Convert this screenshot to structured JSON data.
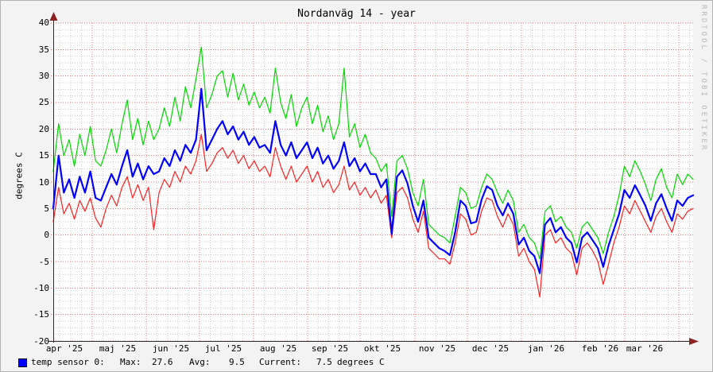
{
  "title": "Nordanväg 14 - year",
  "watermark": "RRDTOOL / TOBI OETIKER",
  "y_axis": {
    "label": "degrees C",
    "ticks": [
      "40",
      "35",
      "30",
      "25",
      "20",
      "15",
      "10",
      "5",
      "0",
      "-5",
      "-10",
      "-15",
      "-20"
    ]
  },
  "x_axis": {
    "labels": [
      "apr '25",
      "maj '25",
      "jun '25",
      "jul '25",
      "aug '25",
      "sep '25",
      "okt '25",
      "nov '25",
      "dec '25",
      "jan '26",
      "feb '26",
      "mar '26"
    ]
  },
  "legend": {
    "series_label": "temp sensor 0:",
    "max_label": "Max:",
    "max_value": "27.6",
    "avg_label": "Avg:",
    "avg_value": "9.5",
    "current_label": "Current:",
    "current_value": "7.5",
    "unit": "degrees C",
    "swatch_color": "#0000ff"
  },
  "colors": {
    "background": "#f3f3f3",
    "canvas": "#ffffff",
    "major_grid": "#ee5f5f",
    "minor_grid": "#cccccc",
    "axis": "#2d2d2d",
    "arrow": "#8b2323",
    "max_line": "#00d800",
    "avg_line": "#0000ff",
    "min_line": "#ff2020"
  },
  "chart_data": {
    "type": "line",
    "title": "Nordanväg 14 - year",
    "ylabel": "degrees C",
    "ylim": [
      -20,
      40
    ],
    "x_range": "apr 2025 - apr 2026 (one year, ~3-day sample spacing)",
    "x_tick_labels": [
      "apr '25",
      "maj '25",
      "jun '25",
      "jul '25",
      "aug '25",
      "sep '25",
      "okt '25",
      "nov '25",
      "dec '25",
      "jan '26",
      "feb '26",
      "mar '26"
    ],
    "grid": "major red dotted every 5 degC / month, minor gray dotted",
    "legend_position": "bottom-left",
    "stats": {
      "max": 27.6,
      "avg": 9.5,
      "current": 7.5,
      "unit": "degrees C"
    },
    "series": [
      {
        "name": "max",
        "color": "#00d800",
        "width": 1.2,
        "values": [
          12,
          21,
          15,
          18,
          13,
          19,
          15,
          20.5,
          14,
          13,
          16,
          20,
          15.5,
          21,
          25.5,
          18,
          22,
          17,
          21.5,
          18,
          20,
          24,
          20.5,
          26,
          21.5,
          28,
          24,
          29.5,
          35.5,
          24,
          26.5,
          30,
          31,
          26,
          30.5,
          25.5,
          28.5,
          24.5,
          27,
          24,
          26,
          23,
          31.5,
          25,
          22,
          26.5,
          20.5,
          24,
          26,
          21,
          24.5,
          19.5,
          22.5,
          18,
          21,
          31.5,
          18.5,
          21,
          16.5,
          19,
          15.5,
          14.5,
          12,
          13.5,
          3.5,
          14,
          15,
          12.5,
          8,
          5.5,
          10.5,
          2,
          1,
          0,
          -0.5,
          -1.5,
          3.5,
          9,
          8,
          5,
          5.5,
          9,
          11.5,
          10.5,
          8,
          6,
          8.5,
          6.5,
          0.5,
          2,
          -0.5,
          -1.5,
          -4.5,
          4.5,
          5.5,
          2.5,
          3.5,
          1.5,
          0.5,
          -2.5,
          1.5,
          2.5,
          1,
          -0.5,
          -3.5,
          0.5,
          3.5,
          7.5,
          13,
          11,
          14,
          12,
          9.5,
          6.5,
          10.5,
          12.5,
          9,
          7,
          11.5,
          9.5,
          11.5,
          10.5
        ]
      },
      {
        "name": "avg",
        "color": "#0000ff",
        "width": 2.2,
        "values": [
          5,
          15,
          8,
          10.5,
          7,
          11,
          8,
          12,
          7,
          6.5,
          9,
          11.5,
          9.5,
          13,
          16,
          11,
          13.5,
          10.5,
          13,
          11.5,
          12,
          14.5,
          13,
          16,
          14,
          17,
          15.5,
          18,
          27.6,
          16,
          18,
          20,
          21.5,
          19,
          20.5,
          18,
          19.5,
          17,
          18.5,
          16.5,
          17,
          15.5,
          21.5,
          17,
          15,
          17.5,
          14.5,
          16,
          17.5,
          14.5,
          16.5,
          13.5,
          15,
          12.5,
          14,
          17.5,
          13,
          14.5,
          12,
          13.5,
          11.5,
          11.5,
          9,
          10.5,
          0.2,
          11,
          12.2,
          9.7,
          5.5,
          2.5,
          6.5,
          -0.5,
          -1.5,
          -2.5,
          -3,
          -3.8,
          0.5,
          6.5,
          5.5,
          2.2,
          2.5,
          6.7,
          9.2,
          8.5,
          5.5,
          3.7,
          6,
          4,
          -1.8,
          -0.5,
          -3,
          -4,
          -7.2,
          2,
          3.2,
          0.5,
          1.5,
          -0.5,
          -1.5,
          -5.2,
          -0.5,
          0.5,
          -1,
          -2.5,
          -6,
          -2,
          1,
          4,
          8.5,
          7,
          9.4,
          7.5,
          5.5,
          2.7,
          6,
          7.7,
          5,
          2.7,
          6.5,
          5.5,
          7,
          7.5
        ]
      },
      {
        "name": "min",
        "color": "#ff2020",
        "width": 1.2,
        "values": [
          2.5,
          9,
          4,
          6,
          3,
          6.5,
          4.5,
          7,
          3.2,
          1.5,
          5,
          7.5,
          5.5,
          9,
          11,
          7,
          9.5,
          6.5,
          9,
          1,
          8,
          10.5,
          9,
          12,
          10,
          13,
          11.5,
          14,
          19,
          12,
          13.5,
          15.5,
          16.5,
          14.5,
          16,
          13.5,
          15,
          12.5,
          14,
          12,
          13,
          11,
          16.5,
          13,
          10.5,
          13,
          10,
          11.5,
          13,
          10,
          12,
          9,
          10.5,
          8,
          9.5,
          13,
          8.5,
          10,
          7.5,
          9,
          7,
          8.5,
          6,
          7.5,
          -0.5,
          8,
          9,
          7,
          3,
          0.5,
          4.5,
          -2.5,
          -3.5,
          -4.5,
          -4.5,
          -5.5,
          -1.5,
          4,
          3,
          0,
          0.5,
          4.5,
          7,
          6.5,
          3.5,
          1.5,
          4,
          2,
          -4,
          -2.5,
          -5,
          -6.5,
          -11.7,
          0,
          1,
          -1.5,
          -0.5,
          -2.5,
          -3.5,
          -7.5,
          -2.5,
          -1.5,
          -3,
          -5,
          -9.3,
          -5.5,
          -1.5,
          1.5,
          5.5,
          4,
          6.5,
          4.5,
          2.5,
          0.5,
          3.5,
          5,
          2.5,
          0.5,
          4,
          3,
          4.5,
          5
        ]
      }
    ]
  }
}
